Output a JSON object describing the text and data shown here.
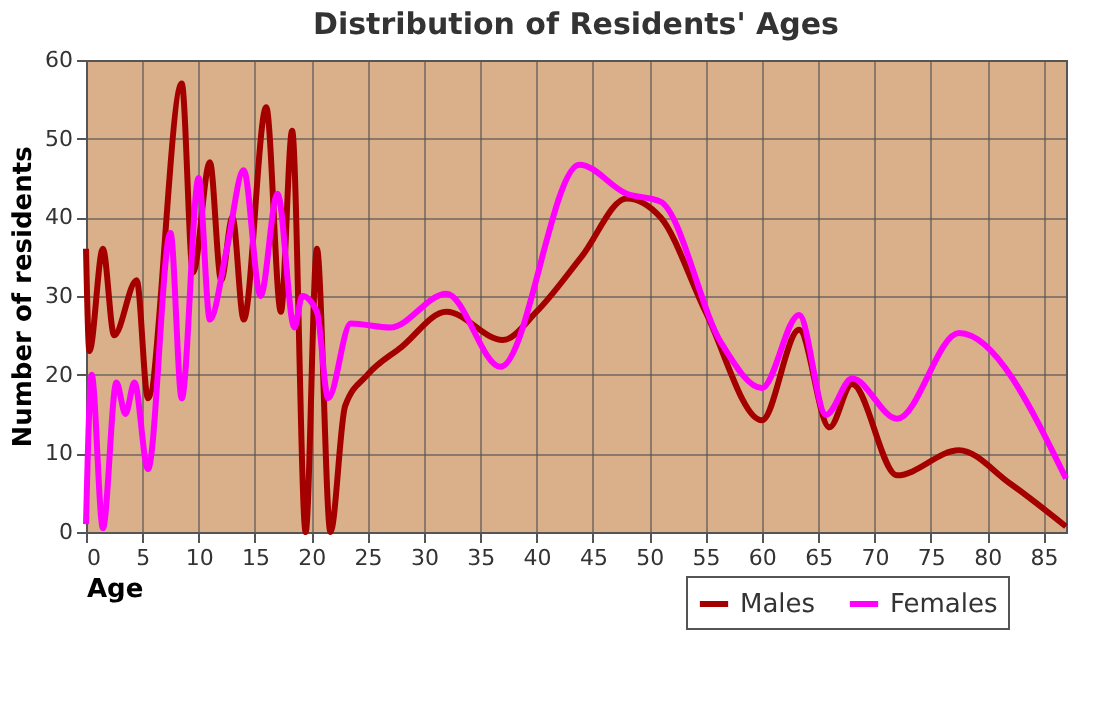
{
  "chart_data": {
    "type": "line",
    "title": "Distribution of Residents' Ages",
    "xlabel": "Age",
    "ylabel": "Number of residents",
    "xlim": [
      0,
      87
    ],
    "ylim": [
      0,
      60
    ],
    "xticks": [
      0,
      5,
      10,
      15,
      20,
      25,
      30,
      35,
      40,
      45,
      50,
      55,
      60,
      65,
      70,
      75,
      80,
      85
    ],
    "yticks": [
      0,
      10,
      20,
      30,
      40,
      50,
      60
    ],
    "grid": true,
    "legend": "bottom",
    "marker": "none",
    "line_style": "solid",
    "series": [
      {
        "name": "Males",
        "color": "#a50000",
        "x": [
          0,
          0.3,
          1.5,
          2.5,
          4.5,
          5.5,
          8.5,
          9.5,
          11,
          12,
          13,
          14,
          16,
          17.3,
          18.3,
          19.5,
          20.5,
          21.7,
          23,
          25,
          28,
          32,
          37,
          40,
          44,
          48,
          51,
          55,
          60,
          63.3,
          66,
          68,
          72,
          77.5,
          82,
          87
        ],
        "values": [
          36,
          23,
          36,
          25,
          32,
          17,
          57,
          33,
          47,
          32,
          40,
          27,
          54,
          28,
          51,
          0,
          36,
          0,
          16,
          20,
          23.5,
          28,
          24.4,
          28,
          35,
          42.4,
          40,
          28,
          14.2,
          25.7,
          13.3,
          18.8,
          7.2,
          10.4,
          6.2,
          0.7
        ]
      },
      {
        "name": "Females",
        "color": "#ff00ff",
        "x": [
          0,
          0.5,
          1.5,
          2.7,
          3.5,
          4.3,
          5.5,
          7.5,
          8.5,
          10,
          11,
          12.5,
          14,
          15.5,
          17,
          18.5,
          19.2,
          20.5,
          21.5,
          23.5,
          27,
          32,
          36.8,
          43.8,
          48,
          51,
          56.4,
          60,
          63.3,
          65.7,
          68,
          72,
          77.5,
          87
        ],
        "values": [
          1,
          20,
          0.5,
          19,
          15,
          19,
          8,
          38,
          17,
          45,
          27,
          36,
          46,
          30,
          43,
          26,
          30,
          28,
          17,
          26.5,
          26,
          30.3,
          21,
          46.7,
          43,
          42,
          24,
          18.3,
          27.6,
          14.9,
          19.5,
          14.4,
          25.3,
          6.8
        ]
      }
    ]
  }
}
